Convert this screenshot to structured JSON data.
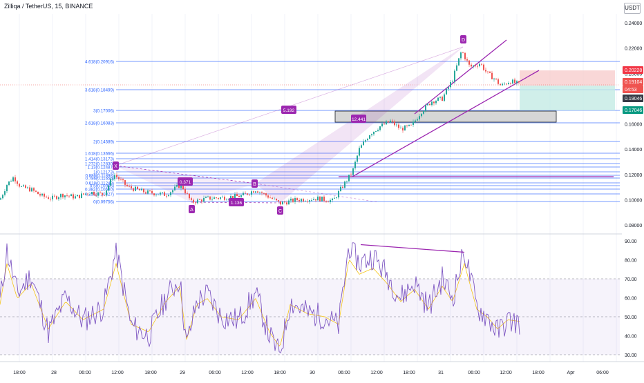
{
  "header": {
    "title": "Zilliqa / TetherUS, 15, BINANCE",
    "currency": "USDT"
  },
  "colors": {
    "fib_line": "#2962ff",
    "purple": "#9c27b0",
    "rsi_line": "#7e57c2",
    "rsi_ma": "#f5c518",
    "candle_up": "#26a69a",
    "candle_down": "#ef5350",
    "badge_price": "#ef5350",
    "badge_stop": "#f23645",
    "badge_target": "#089981",
    "badge_dark": "#363a45"
  },
  "price_axis": {
    "ticks": [
      "0.24000",
      "0.22000",
      "0.20000",
      "0.18000",
      "0.16000",
      "0.14000",
      "0.12000",
      "0.10000",
      "0.08000"
    ],
    "badges": [
      {
        "label": "0.20228",
        "kind": "stop"
      },
      {
        "label": "0.19104",
        "kind": "price"
      },
      {
        "label": "04:53",
        "kind": "price"
      },
      {
        "label": "0.19046",
        "kind": "dark"
      },
      {
        "label": "0.17046",
        "kind": "target"
      }
    ]
  },
  "rsi_axis": {
    "ticks": [
      "90.00",
      "80.00",
      "70.00",
      "60.00",
      "50.00",
      "40.00",
      "30.00"
    ]
  },
  "time_axis": {
    "labels": [
      "18:00",
      "28",
      "06:00",
      "12:00",
      "18:00",
      "29",
      "06:00",
      "12:00",
      "18:00",
      "30",
      "06:00",
      "12:00",
      "18:00",
      "31",
      "06:00",
      "12:00",
      "18:00",
      "Apr",
      "06:00"
    ]
  },
  "fib_levels": [
    {
      "label": "4.618(0.20916)"
    },
    {
      "label": "3.618(0.18499)"
    },
    {
      "label": "3(0.17006)"
    },
    {
      "label": "2.618(0.16083)"
    },
    {
      "label": "2(0.14589)"
    },
    {
      "label": "1.618(0.13666)"
    },
    {
      "label": "1.414(0.13173)"
    },
    {
      "label": "1.272(0.12830)"
    },
    {
      "label": "1.13(0.12487)"
    },
    {
      "label": "1(0.12173)"
    },
    {
      "label": "0.886(0.11898)"
    },
    {
      "label": "0.786(0.11656)"
    },
    {
      "label": "0.618(0.11249)"
    },
    {
      "label": "0.5(0.10965)"
    },
    {
      "label": "0.382(0.10680)"
    },
    {
      "label": "0.236(0.10327)"
    },
    {
      "label": "0(0.09756)"
    }
  ],
  "pattern": {
    "points": [
      "X",
      "A",
      "B",
      "C",
      "D"
    ],
    "ratios": [
      "0.371",
      "1.136",
      "5.192",
      "12.441"
    ]
  }
}
